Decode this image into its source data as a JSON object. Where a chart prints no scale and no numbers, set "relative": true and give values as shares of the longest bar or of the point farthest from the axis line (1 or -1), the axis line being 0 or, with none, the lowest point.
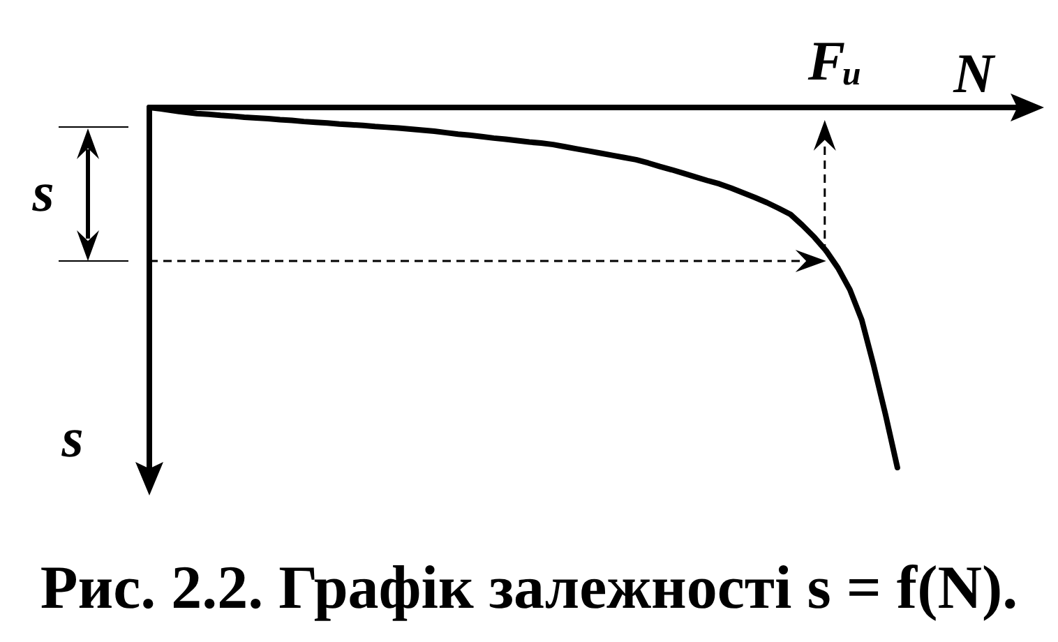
{
  "chart_data": {
    "type": "line",
    "title": "Рис. 2.2. Графік залежності s = f(N).",
    "xlabel": "N",
    "ylabel": "s",
    "annotations": [
      "s",
      "Fᵤ"
    ],
    "categories": [
      null,
      null,
      null,
      null,
      null,
      null,
      null,
      null,
      null,
      null,
      null,
      null,
      null,
      null,
      null,
      null,
      null,
      null,
      null,
      null,
      null,
      null,
      null,
      null,
      null,
      null,
      null,
      null,
      null,
      null,
      null,
      null,
      null,
      null,
      null,
      null,
      null,
      null,
      null,
      null,
      null,
      null,
      null,
      null,
      null,
      null,
      null,
      null,
      null,
      null,
      null,
      null,
      null,
      null,
      null,
      null,
      null,
      null,
      null,
      null,
      null,
      null,
      null,
      null,
      null,
      null,
      null,
      null,
      null,
      null,
      null,
      null,
      null,
      null
    ],
    "values": [
      0,
      -0.004,
      -0.009,
      -0.013,
      -0.017,
      -0.019,
      -0.022,
      -0.024,
      -0.027,
      -0.029,
      -0.031,
      -0.034,
      -0.036,
      -0.039,
      -0.041,
      -0.043,
      -0.046,
      -0.048,
      -0.05,
      -0.053,
      -0.055,
      -0.057,
      -0.06,
      -0.063,
      -0.066,
      -0.07,
      -0.074,
      -0.077,
      -0.081,
      -0.085,
      -0.088,
      -0.092,
      -0.096,
      -0.099,
      -0.103,
      -0.109,
      -0.115,
      -0.121,
      -0.127,
      -0.133,
      -0.139,
      -0.145,
      -0.154,
      -0.164,
      -0.173,
      -0.183,
      -0.193,
      -0.203,
      -0.212,
      -0.224,
      -0.237,
      -0.25,
      -0.264,
      -0.28,
      -0.297,
      -0.327,
      -0.36,
      -0.398,
      -0.446,
      -0.506,
      -0.59,
      -0.716,
      -0.853,
      -1,
      null,
      null,
      null,
      null,
      null,
      null,
      null,
      null,
      null,
      null
    ],
    "color": "#000000",
    "relative": true,
    "tick_labels": false,
    "marker": "none",
    "line_style": "solid"
  }
}
